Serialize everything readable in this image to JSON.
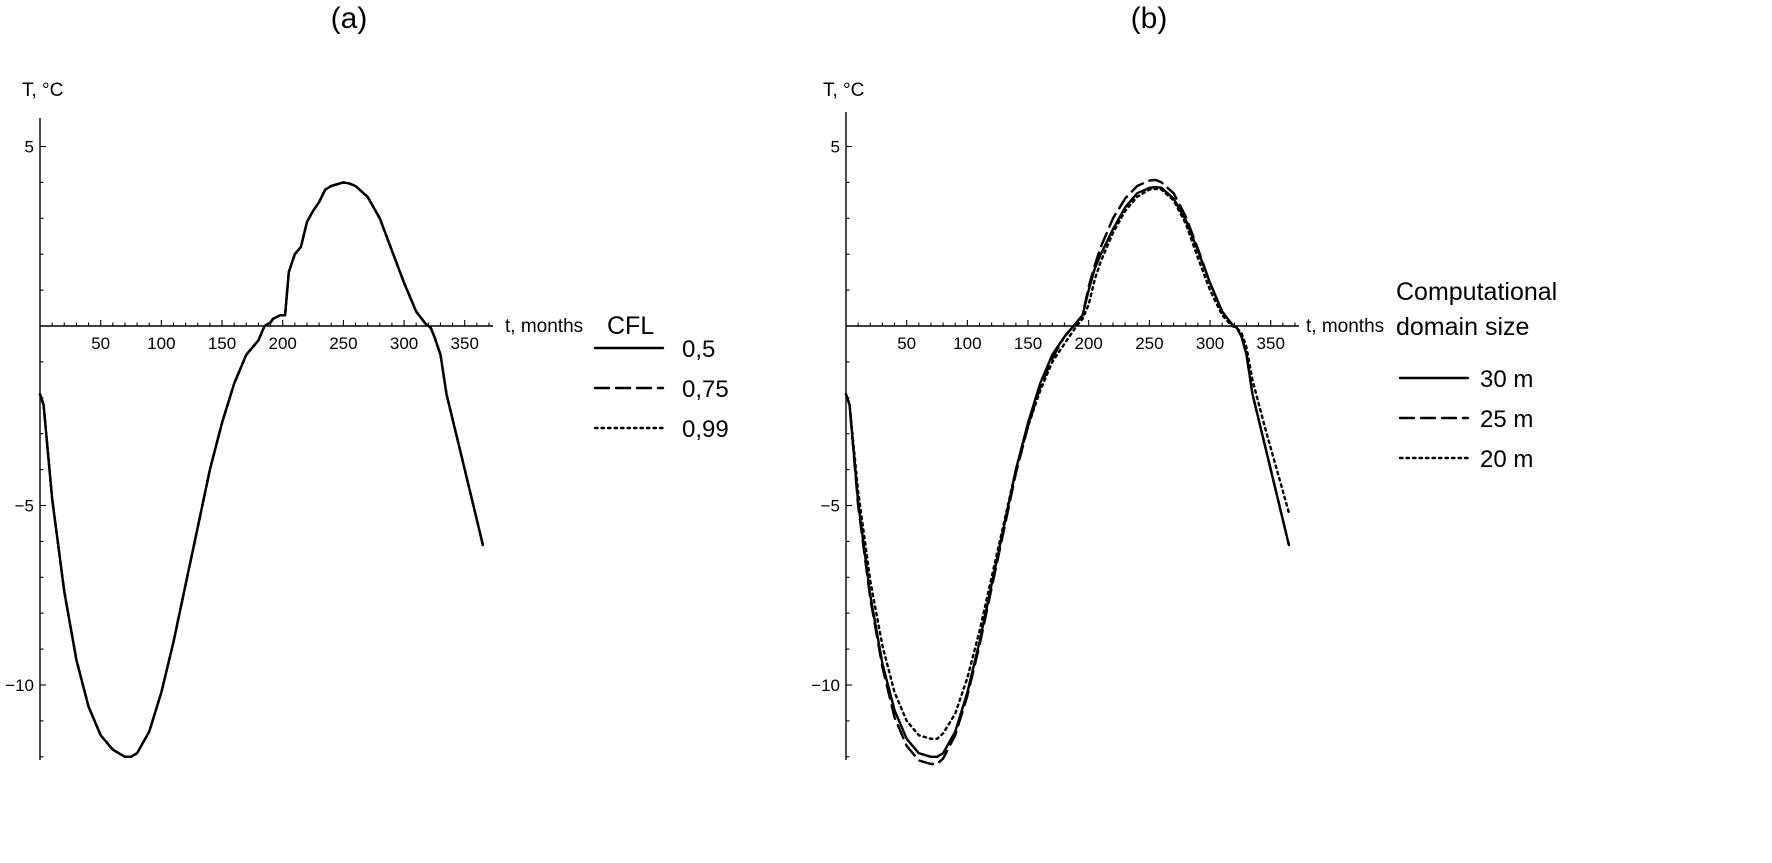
{
  "chart_data": [
    {
      "type": "line",
      "panel_label": "(a)",
      "xlabel": "t, months",
      "ylabel": "T, °C",
      "xlim": [
        0,
        370
      ],
      "ylim": [
        -12,
        6
      ],
      "x_ticks": [
        50,
        100,
        150,
        200,
        250,
        300,
        350
      ],
      "y_ticks": [
        5,
        -5,
        -10
      ],
      "y_tick_labels": [
        "5",
        "−5",
        "−10"
      ],
      "legend_title": [
        "CFL"
      ],
      "legend_position": "right",
      "series": [
        {
          "name": "0,5",
          "dash": "solid",
          "x": [
            0,
            3,
            10,
            20,
            30,
            40,
            50,
            60,
            70,
            75,
            80,
            90,
            100,
            110,
            120,
            130,
            140,
            150,
            160,
            170,
            180,
            185,
            190,
            192,
            198,
            202,
            205,
            210,
            215,
            220,
            225,
            230,
            235,
            240,
            245,
            250,
            255,
            260,
            270,
            280,
            290,
            300,
            310,
            318,
            322,
            325,
            330,
            335,
            345,
            355,
            365
          ],
          "y": [
            -1.9,
            -2.2,
            -4.8,
            -7.4,
            -9.3,
            -10.6,
            -11.4,
            -11.8,
            -12.0,
            -12.0,
            -11.9,
            -11.3,
            -10.2,
            -8.8,
            -7.2,
            -5.6,
            -4.0,
            -2.7,
            -1.6,
            -0.8,
            -0.4,
            0.0,
            0.1,
            0.2,
            0.3,
            0.3,
            1.5,
            2.0,
            2.2,
            2.9,
            3.2,
            3.45,
            3.8,
            3.9,
            3.95,
            4.0,
            3.97,
            3.9,
            3.6,
            3.0,
            2.1,
            1.2,
            0.4,
            0.05,
            -0.05,
            -0.3,
            -0.8,
            -1.9,
            -3.3,
            -4.7,
            -6.1
          ]
        },
        {
          "name": "0,75",
          "dash": "dashed",
          "x": [
            0,
            3,
            10,
            20,
            30,
            40,
            50,
            60,
            70,
            75,
            80,
            90,
            100,
            110,
            120,
            130,
            140,
            150,
            160,
            170,
            180,
            185,
            190,
            192,
            198,
            202,
            205,
            210,
            215,
            220,
            225,
            230,
            235,
            240,
            245,
            250,
            255,
            260,
            270,
            280,
            290,
            300,
            310,
            318,
            322,
            325,
            330,
            335,
            345,
            355,
            365
          ],
          "y": [
            -1.9,
            -2.2,
            -4.8,
            -7.4,
            -9.3,
            -10.6,
            -11.4,
            -11.8,
            -12.0,
            -12.0,
            -11.9,
            -11.3,
            -10.2,
            -8.8,
            -7.2,
            -5.6,
            -4.0,
            -2.7,
            -1.6,
            -0.8,
            -0.4,
            0.0,
            0.1,
            0.2,
            0.3,
            0.3,
            1.5,
            2.0,
            2.2,
            2.9,
            3.2,
            3.45,
            3.8,
            3.9,
            3.95,
            4.0,
            3.97,
            3.9,
            3.6,
            3.0,
            2.1,
            1.2,
            0.4,
            0.05,
            -0.05,
            -0.3,
            -0.8,
            -1.9,
            -3.3,
            -4.7,
            -6.1
          ]
        },
        {
          "name": "0,99",
          "dash": "dotted",
          "x": [
            0,
            3,
            10,
            20,
            30,
            40,
            50,
            60,
            70,
            75,
            80,
            90,
            100,
            110,
            120,
            130,
            140,
            150,
            160,
            170,
            180,
            185,
            190,
            192,
            198,
            202,
            205,
            210,
            215,
            220,
            225,
            230,
            235,
            240,
            245,
            250,
            255,
            260,
            270,
            280,
            290,
            300,
            310,
            318,
            322,
            325,
            330,
            335,
            345,
            355,
            365
          ],
          "y": [
            -1.9,
            -2.2,
            -4.8,
            -7.4,
            -9.3,
            -10.6,
            -11.4,
            -11.8,
            -12.0,
            -12.0,
            -11.9,
            -11.3,
            -10.2,
            -8.8,
            -7.2,
            -5.6,
            -4.0,
            -2.7,
            -1.6,
            -0.8,
            -0.4,
            0.0,
            0.1,
            0.2,
            0.3,
            0.3,
            1.5,
            2.0,
            2.2,
            2.9,
            3.2,
            3.45,
            3.8,
            3.9,
            3.95,
            4.0,
            3.97,
            3.9,
            3.6,
            3.0,
            2.1,
            1.2,
            0.4,
            0.05,
            -0.05,
            -0.3,
            -0.8,
            -1.9,
            -3.3,
            -4.7,
            -6.1
          ]
        }
      ]
    },
    {
      "type": "line",
      "panel_label": "(b)",
      "xlabel": "t, months",
      "ylabel": "T, °C",
      "xlim": [
        0,
        370
      ],
      "ylim": [
        -12,
        6
      ],
      "x_ticks": [
        50,
        100,
        150,
        200,
        250,
        300,
        350
      ],
      "y_ticks": [
        5,
        -5,
        -10
      ],
      "y_tick_labels": [
        "5",
        "−5",
        "−10"
      ],
      "legend_title": [
        "Computational",
        "domain size"
      ],
      "legend_position": "right",
      "series": [
        {
          "name": "30 m",
          "dash": "solid",
          "x": [
            0,
            3,
            10,
            20,
            30,
            40,
            50,
            60,
            70,
            75,
            80,
            90,
            100,
            110,
            120,
            130,
            140,
            150,
            160,
            170,
            180,
            190,
            195,
            200,
            205,
            210,
            220,
            230,
            240,
            250,
            255,
            260,
            270,
            280,
            290,
            300,
            310,
            318,
            322,
            326,
            330,
            335,
            345,
            355,
            365
          ],
          "y": [
            -1.9,
            -2.2,
            -4.9,
            -7.5,
            -9.4,
            -10.7,
            -11.5,
            -11.9,
            -12.0,
            -12.0,
            -11.9,
            -11.3,
            -10.2,
            -8.8,
            -7.2,
            -5.6,
            -4.0,
            -2.7,
            -1.6,
            -0.8,
            -0.3,
            0.1,
            0.3,
            1.0,
            1.6,
            2.0,
            2.7,
            3.3,
            3.7,
            3.85,
            3.87,
            3.85,
            3.55,
            2.95,
            2.1,
            1.2,
            0.4,
            0.05,
            -0.05,
            -0.3,
            -0.8,
            -1.9,
            -3.3,
            -4.7,
            -6.1
          ]
        },
        {
          "name": "25 m",
          "dash": "dashed",
          "x": [
            0,
            3,
            10,
            20,
            30,
            40,
            50,
            60,
            70,
            75,
            80,
            90,
            100,
            110,
            120,
            130,
            140,
            150,
            160,
            170,
            180,
            190,
            195,
            200,
            205,
            210,
            220,
            230,
            240,
            250,
            255,
            260,
            270,
            280,
            290,
            300,
            310,
            318,
            322,
            326,
            330,
            335,
            345,
            355,
            365
          ],
          "y": [
            -1.9,
            -2.2,
            -5.0,
            -7.6,
            -9.5,
            -10.9,
            -11.7,
            -12.1,
            -12.2,
            -12.2,
            -12.05,
            -11.4,
            -10.3,
            -8.9,
            -7.3,
            -5.7,
            -4.1,
            -2.8,
            -1.7,
            -0.9,
            -0.3,
            0.1,
            0.3,
            1.1,
            1.7,
            2.2,
            3.0,
            3.55,
            3.9,
            4.05,
            4.07,
            4.0,
            3.7,
            3.05,
            2.15,
            1.2,
            0.4,
            0.05,
            -0.05,
            -0.3,
            -0.8,
            -1.9,
            -3.3,
            -4.7,
            -6.1
          ]
        },
        {
          "name": "20 m",
          "dash": "dotted",
          "x": [
            0,
            3,
            10,
            20,
            30,
            40,
            50,
            60,
            70,
            75,
            80,
            90,
            100,
            110,
            120,
            130,
            140,
            150,
            160,
            170,
            180,
            190,
            195,
            200,
            205,
            210,
            220,
            230,
            240,
            250,
            255,
            260,
            270,
            280,
            290,
            300,
            310,
            318,
            322,
            326,
            330,
            335,
            345,
            355,
            365
          ],
          "y": [
            -1.9,
            -2.2,
            -4.6,
            -7.1,
            -8.9,
            -10.2,
            -11.0,
            -11.4,
            -11.5,
            -11.5,
            -11.35,
            -10.8,
            -9.8,
            -8.5,
            -7.0,
            -5.5,
            -4.0,
            -2.8,
            -1.8,
            -1.0,
            -0.5,
            0.0,
            0.2,
            0.6,
            1.3,
            1.8,
            2.6,
            3.2,
            3.6,
            3.8,
            3.82,
            3.8,
            3.5,
            2.85,
            1.9,
            1.0,
            0.3,
            0.0,
            -0.05,
            -0.2,
            -0.6,
            -1.5,
            -2.8,
            -4.0,
            -5.2
          ]
        }
      ]
    }
  ]
}
